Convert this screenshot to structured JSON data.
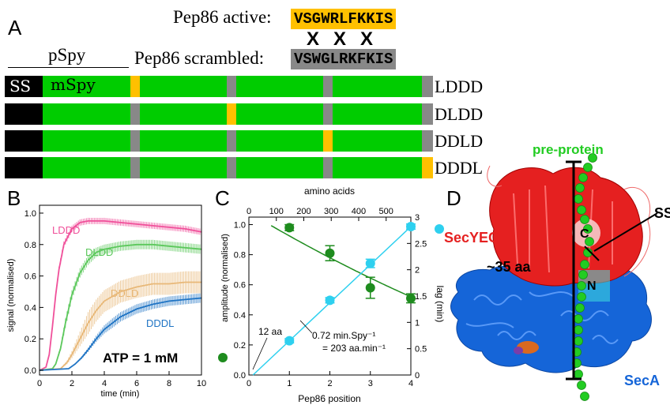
{
  "panelA": {
    "letter": "A",
    "active_label": "Pep86 active:",
    "active_seq": "VSGWRLFKKIS",
    "scrambled_label": "Pep86 scrambled:",
    "scrambled_seq": "VSWGLRKFKIS",
    "cross_marks": [
      "X",
      "X",
      "X"
    ],
    "pspy_label": "pSpy",
    "ss_label": "SS",
    "mspy_label": "mSpy",
    "colors": {
      "active": "#ffc000",
      "scrambled": "#888888",
      "mature": "#00cc00",
      "signal": "#000000"
    },
    "rows": [
      {
        "label": "LDDD",
        "segments": [
          "active",
          "scrambled",
          "scrambled",
          "scrambled"
        ]
      },
      {
        "label": "DLDD",
        "segments": [
          "scrambled",
          "active",
          "scrambled",
          "scrambled"
        ]
      },
      {
        "label": "DDLD",
        "segments": [
          "scrambled",
          "scrambled",
          "active",
          "scrambled"
        ]
      },
      {
        "label": "DDDL",
        "segments": [
          "scrambled",
          "scrambled",
          "scrambled",
          "active"
        ]
      }
    ]
  },
  "panelB": {
    "letter": "B",
    "annotation": "ATP = 1 mM",
    "chart_data": {
      "type": "line",
      "xlabel": "time (min)",
      "ylabel": "signal (normalised)",
      "xlim": [
        0,
        10
      ],
      "ylim": [
        -0.03,
        1.05
      ],
      "xticks": [
        0,
        2,
        4,
        6,
        8,
        10
      ],
      "yticks": [
        0.0,
        0.2,
        0.4,
        0.6,
        0.8,
        1.0
      ],
      "series": [
        {
          "name": "LDDD",
          "color": "#f0509a",
          "band": 0.02,
          "x": [
            0,
            0.4,
            0.6,
            0.8,
            1.0,
            1.2,
            1.5,
            2,
            2.5,
            3,
            4,
            5,
            6,
            7,
            8,
            9,
            10
          ],
          "y": [
            0,
            0.02,
            0.1,
            0.28,
            0.48,
            0.64,
            0.8,
            0.9,
            0.94,
            0.95,
            0.95,
            0.94,
            0.93,
            0.92,
            0.91,
            0.9,
            0.88
          ]
        },
        {
          "name": "DLDD",
          "color": "#5cc85c",
          "band": 0.03,
          "x": [
            0,
            0.8,
            1.0,
            1.3,
            1.6,
            2,
            2.5,
            3,
            3.5,
            4,
            5,
            6,
            7,
            8,
            9,
            10
          ],
          "y": [
            0,
            0.01,
            0.04,
            0.14,
            0.3,
            0.48,
            0.62,
            0.7,
            0.75,
            0.77,
            0.79,
            0.8,
            0.8,
            0.79,
            0.78,
            0.77
          ]
        },
        {
          "name": "DDLD",
          "color": "#e8b878",
          "band": 0.07,
          "x": [
            0,
            1.3,
            1.7,
            2,
            2.5,
            3,
            3.5,
            4,
            5,
            6,
            7,
            8,
            9,
            10
          ],
          "y": [
            0,
            0.01,
            0.05,
            0.1,
            0.2,
            0.3,
            0.38,
            0.44,
            0.5,
            0.53,
            0.55,
            0.55,
            0.56,
            0.56
          ]
        },
        {
          "name": "DDDL",
          "color": "#1f74c4",
          "band": 0.03,
          "x": [
            0,
            1.8,
            2.2,
            2.6,
            3,
            3.5,
            4,
            5,
            6,
            7,
            8,
            9,
            10
          ],
          "y": [
            0,
            0.01,
            0.04,
            0.08,
            0.13,
            0.2,
            0.26,
            0.34,
            0.39,
            0.42,
            0.44,
            0.45,
            0.46
          ]
        }
      ]
    }
  },
  "panelC": {
    "letter": "C",
    "annot_12aa": "12 aa",
    "annot_rate1": "0.72 min.Spy⁻¹",
    "annot_rate2": "= 203 aa.min⁻¹",
    "chart_data": {
      "type": "scatter",
      "xlabel": "Pep86 position",
      "ylabel_left": "amplitude (normalised)",
      "ylabel_right": "lag (min)",
      "xlabel_top": "amino acids",
      "xlim": [
        0,
        4
      ],
      "ylim_left": [
        0,
        1.05
      ],
      "ylim_right": [
        0,
        3
      ],
      "xticks": [
        0,
        1,
        2,
        3,
        4
      ],
      "yticks_left": [
        0.0,
        0.2,
        0.4,
        0.6,
        0.8,
        1.0
      ],
      "yticks_right": [
        0,
        0.5,
        1,
        1.5,
        2,
        2.5,
        3
      ],
      "xticks_top": [
        0,
        100,
        200,
        300,
        400,
        500
      ],
      "top_axis_max_aa": 590,
      "series": [
        {
          "name": "amplitude",
          "color": "#1e8c1e",
          "axis": "left",
          "x": [
            1,
            2,
            3,
            4
          ],
          "y": [
            0.98,
            0.81,
            0.58,
            0.51
          ],
          "err": [
            0.02,
            0.05,
            0.07,
            0.03
          ]
        },
        {
          "name": "lag",
          "color": "#2ed0ef",
          "axis": "right",
          "x": [
            1,
            2,
            3,
            4
          ],
          "y": [
            0.65,
            1.42,
            2.12,
            2.82
          ],
          "err": [
            0.04,
            0.05,
            0.08,
            0.05
          ]
        }
      ]
    }
  },
  "panelD": {
    "letter": "D",
    "preprotein": "pre-protein",
    "secyeg": "SecYEG",
    "seca": "SecA",
    "aa35": "~35 aa",
    "c_label": "C",
    "n_label": "N",
    "ss_label": "SS",
    "colors": {
      "secyeg": "#e52020",
      "seca": "#1565d8",
      "preprotein": "#22cc22",
      "n": "#40e0e0"
    }
  }
}
